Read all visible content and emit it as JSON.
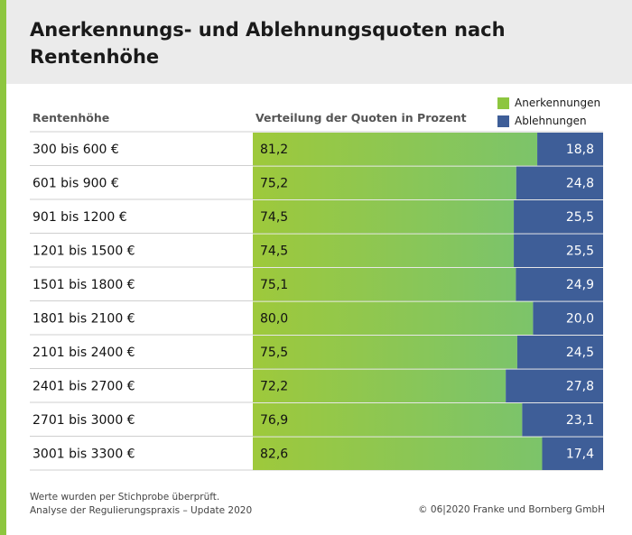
{
  "title": "Anerkennungs- und Ablehnungsquoten nach Rentenhöhe",
  "colors": {
    "accent": "#8dc63f",
    "header_bg": "#ebebeb",
    "green_start": "#9ec93b",
    "green_end": "#7cc46a",
    "blue": "#3e5e98"
  },
  "legend": [
    {
      "label": "Anerkennungen",
      "color": "#8dc63f"
    },
    {
      "label": "Ablehnungen",
      "color": "#3e5e98"
    }
  ],
  "column_headers": {
    "category": "Rentenhöhe",
    "distribution": "Verteilung der Quoten in Prozent"
  },
  "chart_data": {
    "type": "bar",
    "orientation": "horizontal",
    "stacked": true,
    "percent": true,
    "categories": [
      "300 bis 600 €",
      "601 bis 900 €",
      "901 bis 1200 €",
      "1201 bis 1500 €",
      "1501 bis 1800 €",
      "1801 bis 2100 €",
      "2101 bis 2400 €",
      "2401 bis 2700 €",
      "2701 bis 3000 €",
      "3001 bis 3300 €"
    ],
    "series": [
      {
        "name": "Anerkennungen",
        "values": [
          81.2,
          75.2,
          74.5,
          74.5,
          75.1,
          80.0,
          75.5,
          72.2,
          76.9,
          82.6
        ],
        "labels": [
          "81,2",
          "75,2",
          "74,5",
          "74,5",
          "75,1",
          "80,0",
          "75,5",
          "72,2",
          "76,9",
          "82,6"
        ]
      },
      {
        "name": "Ablehnungen",
        "values": [
          18.8,
          24.8,
          25.5,
          25.5,
          24.9,
          20.0,
          24.5,
          27.8,
          23.1,
          17.4
        ],
        "labels": [
          "18,8",
          "24,8",
          "25,5",
          "25,5",
          "24,9",
          "20,0",
          "24,5",
          "27,8",
          "23,1",
          "17,4"
        ]
      }
    ],
    "xlim": [
      0,
      100
    ],
    "legend_position": "top-right"
  },
  "footnote": [
    "Werte wurden per Stichprobe überprüft.",
    "Analyse der Regulierungspraxis – Update 2020"
  ],
  "copyright": "© 06|2020 Franke und Bornberg GmbH"
}
